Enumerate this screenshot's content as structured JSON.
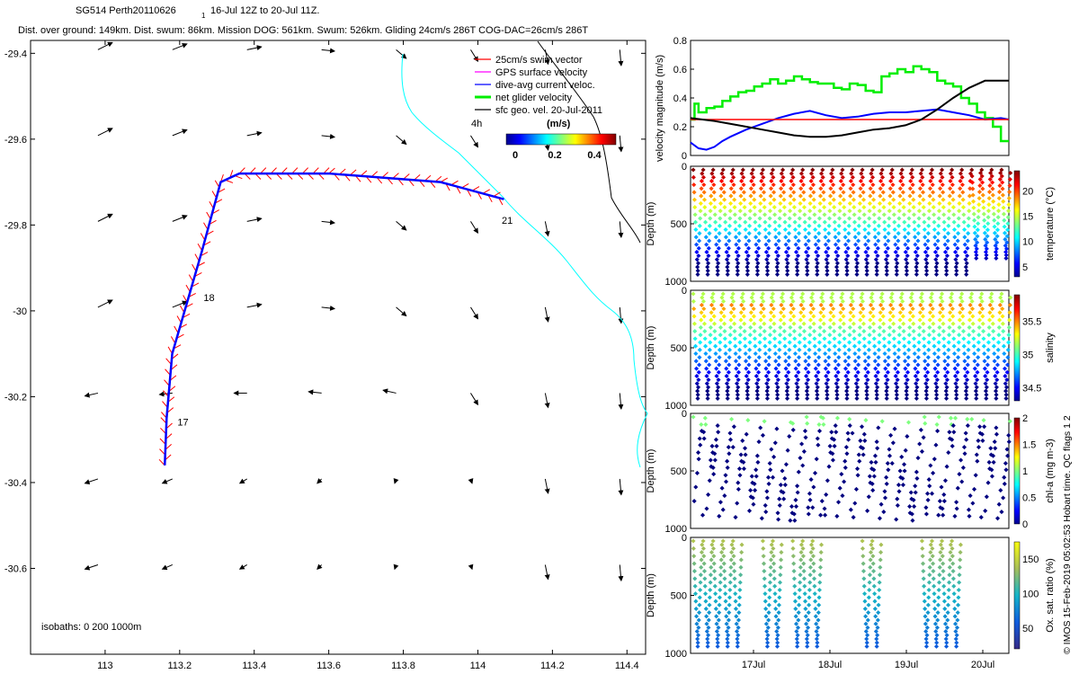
{
  "title": {
    "line1_a": "SG514 Perth20110626",
    "line1_sub": "1",
    "line1_b": "16-Jul 12Z to 20-Jul 11Z.",
    "line2": "Dist. over ground: 149km. Dist. swum: 86km. Mission DOG: 561km. Swum: 526km. Gliding 24cm/s 286T COG-DAC=26cm/s 286T"
  },
  "copyright": "© IMOS 15-Feb-2019 05:02:53 Hobart time. QC flags 1  2",
  "colors": {
    "swim": "#ff0000",
    "gps": "#ff00ff",
    "dac": "#0000ff",
    "net": "#00ee00",
    "geo": "#000000",
    "coast": "#00ffff",
    "netline": "#00dd00",
    "refline": "#ff0000",
    "blackline": "#000000"
  },
  "chart_data": [
    {
      "type": "scatter",
      "name": "trajectory-map",
      "xlim": [
        112.8,
        114.45
      ],
      "ylim": [
        -30.8,
        -29.37
      ],
      "xticks": [
        113,
        113.2,
        113.4,
        113.6,
        113.8,
        114,
        114.2,
        114.4
      ],
      "yticks": [
        -29.4,
        -29.6,
        -29.8,
        -30,
        -30.2,
        -30.4,
        -30.6
      ],
      "track": [
        {
          "x": 113.16,
          "y": -30.36
        },
        {
          "x": 113.165,
          "y": -30.25
        },
        {
          "x": 113.18,
          "y": -30.1
        },
        {
          "x": 113.22,
          "y": -29.98
        },
        {
          "x": 113.26,
          "y": -29.86
        },
        {
          "x": 113.31,
          "y": -29.7
        },
        {
          "x": 113.36,
          "y": -29.68
        },
        {
          "x": 113.6,
          "y": -29.68
        },
        {
          "x": 113.9,
          "y": -29.7
        },
        {
          "x": 114.07,
          "y": -29.74
        }
      ],
      "day_labels": [
        {
          "text": "17",
          "x": 113.17,
          "y": -30.25
        },
        {
          "text": "18",
          "x": 113.24,
          "y": -29.96
        },
        {
          "text": "21",
          "x": 114.04,
          "y": -29.78
        }
      ],
      "legend": [
        {
          "label": "25cm/s swim vector",
          "key": "swim"
        },
        {
          "label": "GPS surface velocity",
          "key": "gps"
        },
        {
          "label": "dive-avg current veloc.",
          "key": "dac"
        },
        {
          "label": "net glider velocity",
          "key": "net"
        },
        {
          "label": "sfc geo. vel. 20-Jul-2011",
          "key": "geo"
        }
      ],
      "interval_label": "4h",
      "colorbar": {
        "label": "(m/s)",
        "ticks": [
          "0",
          "0.2",
          "0.4"
        ]
      },
      "isobaths_label": "isobaths: 0   200  1000m"
    },
    {
      "type": "line",
      "name": "velocity-magnitude",
      "ylabel": "velocity magnitude (m/s)",
      "ylim": [
        0,
        0.8
      ],
      "yticks": [
        "0",
        "0.2",
        "0.4",
        "0.6",
        "0.8"
      ],
      "x_days": [
        16.5,
        20.5
      ],
      "series": [
        {
          "name": "net",
          "color": "net",
          "x": [
            16.5,
            16.55,
            16.6,
            16.7,
            16.8,
            16.9,
            17,
            17.1,
            17.2,
            17.3,
            17.4,
            17.5,
            17.6,
            17.7,
            17.8,
            17.9,
            18,
            18.1,
            18.2,
            18.3,
            18.4,
            18.5,
            18.6,
            18.7,
            18.8,
            18.9,
            19,
            19.1,
            19.2,
            19.3,
            19.4,
            19.5,
            19.6,
            19.7,
            19.8,
            19.9,
            20,
            20.1,
            20.2,
            20.3,
            20.4,
            20.5
          ],
          "values": [
            0.25,
            0.36,
            0.3,
            0.33,
            0.34,
            0.38,
            0.41,
            0.44,
            0.45,
            0.48,
            0.5,
            0.53,
            0.5,
            0.52,
            0.55,
            0.53,
            0.51,
            0.5,
            0.5,
            0.47,
            0.46,
            0.5,
            0.49,
            0.45,
            0.44,
            0.55,
            0.57,
            0.6,
            0.58,
            0.62,
            0.6,
            0.58,
            0.52,
            0.5,
            0.48,
            0.4,
            0.36,
            0.3,
            0.26,
            0.2,
            0.1,
            0.1
          ]
        },
        {
          "name": "dac",
          "color": "dac",
          "x": [
            16.5,
            16.6,
            16.7,
            16.8,
            16.9,
            17,
            17.2,
            17.4,
            17.6,
            17.8,
            18,
            18.2,
            18.4,
            18.6,
            18.8,
            19,
            19.2,
            19.4,
            19.6,
            19.8,
            20,
            20.2,
            20.4,
            20.5
          ],
          "values": [
            0.09,
            0.05,
            0.04,
            0.06,
            0.1,
            0.13,
            0.18,
            0.22,
            0.26,
            0.29,
            0.31,
            0.28,
            0.26,
            0.27,
            0.29,
            0.3,
            0.3,
            0.31,
            0.32,
            0.3,
            0.28,
            0.25,
            0.26,
            0.25
          ]
        },
        {
          "name": "reference",
          "color": "refline",
          "x": [
            16.5,
            20.5
          ],
          "values": [
            0.25,
            0.25
          ]
        },
        {
          "name": "black",
          "color": "blackline",
          "x": [
            16.5,
            16.8,
            17.1,
            17.4,
            17.6,
            17.8,
            18,
            18.2,
            18.4,
            18.6,
            18.8,
            19,
            19.2,
            19.4,
            19.6,
            19.8,
            20,
            20.2,
            20.5
          ],
          "values": [
            0.26,
            0.24,
            0.21,
            0.18,
            0.16,
            0.14,
            0.13,
            0.13,
            0.14,
            0.16,
            0.18,
            0.19,
            0.21,
            0.25,
            0.32,
            0.4,
            0.47,
            0.52,
            0.52
          ]
        }
      ]
    },
    {
      "type": "scatter",
      "name": "temperature-section",
      "ylabel": "Depth (m)",
      "cblabel": "temperature (°C)",
      "ylim": [
        1000,
        0
      ],
      "yticks": [
        "0",
        "500",
        "1000"
      ],
      "cbticks": [
        "5",
        "10",
        "15",
        "20"
      ],
      "cbrange": [
        3,
        24
      ],
      "n_dives": 32,
      "max_depth": [
        950,
        950,
        950,
        950,
        950,
        950,
        950,
        950,
        950,
        950,
        950,
        950,
        950,
        950,
        950,
        950,
        950,
        950,
        950,
        950,
        950,
        950,
        950,
        950,
        950,
        950,
        950,
        950,
        800,
        800,
        800,
        800
      ]
    },
    {
      "type": "scatter",
      "name": "salinity-section",
      "ylabel": "Depth (m)",
      "cblabel": "salinity",
      "ylim": [
        1000,
        0
      ],
      "yticks": [
        "0",
        "500",
        "1000"
      ],
      "cbticks": [
        "34.5",
        "35",
        "35.5"
      ],
      "cbrange": [
        34.3,
        35.9
      ],
      "n_dives": 32
    },
    {
      "type": "scatter",
      "name": "chla-section",
      "ylabel": "Depth (m)",
      "cblabel": "chl-a (mg m-3)",
      "ylim": [
        1000,
        0
      ],
      "yticks": [
        "0",
        "500",
        "1000"
      ],
      "cbticks": [
        "0",
        "0.5",
        "1",
        "1.5",
        "2"
      ],
      "cbrange": [
        0,
        2
      ],
      "n_dives": 32
    },
    {
      "type": "scatter",
      "name": "oxygen-section",
      "ylabel": "Depth (m)",
      "cblabel": "Ox. sat. ratio (%)",
      "ylim": [
        1000,
        0
      ],
      "yticks": [
        "0",
        "500",
        "1000"
      ],
      "cbticks": [
        "50",
        "100",
        "150"
      ],
      "cbrange": [
        20,
        175
      ],
      "xticks": [
        "17Jul",
        "18Jul",
        "19Jul",
        "20Jul"
      ],
      "dive_groups": [
        [
          0,
          4
        ],
        [
          7,
          8
        ],
        [
          10,
          12
        ],
        [
          17,
          18
        ],
        [
          23,
          26
        ]
      ]
    }
  ]
}
